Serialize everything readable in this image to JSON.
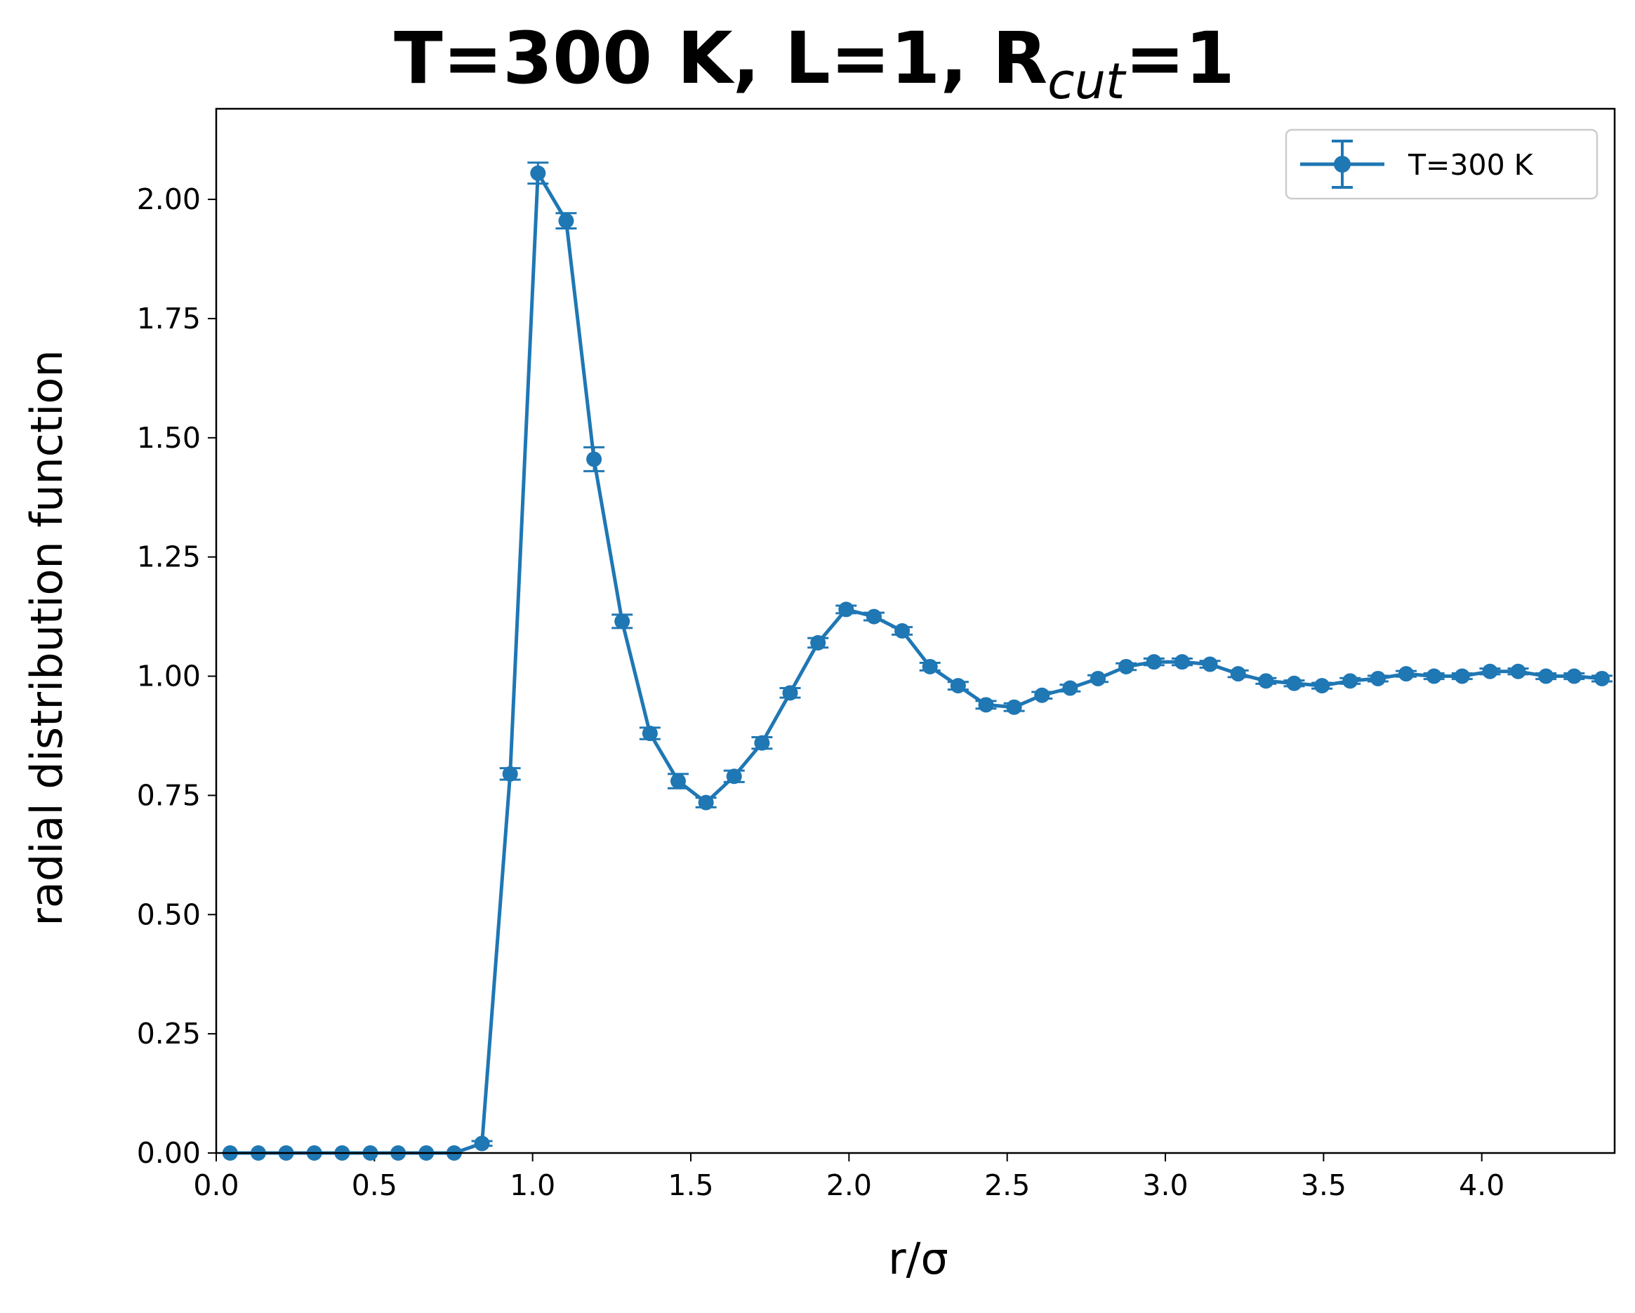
{
  "chart_data": {
    "type": "line",
    "title": {
      "prefix": "T=300 K, L=1, R",
      "subscript": "cut",
      "suffix": "=1"
    },
    "xlabel": "r/σ",
    "ylabel": "radial distribution function",
    "xlim": [
      0.0,
      4.42
    ],
    "ylim": [
      0.0,
      2.19
    ],
    "xticks": [
      0.0,
      0.5,
      1.0,
      1.5,
      2.0,
      2.5,
      3.0,
      3.5,
      4.0
    ],
    "xtick_labels": [
      "0.0",
      "0.5",
      "1.0",
      "1.5",
      "2.0",
      "2.5",
      "3.0",
      "3.5",
      "4.0"
    ],
    "yticks": [
      0.0,
      0.25,
      0.5,
      0.75,
      1.0,
      1.25,
      1.5,
      1.75,
      2.0
    ],
    "ytick_labels": [
      "0.00",
      "0.25",
      "0.50",
      "0.75",
      "1.00",
      "1.25",
      "1.50",
      "1.75",
      "2.00"
    ],
    "grid": false,
    "legend_position": "top-right",
    "series": [
      {
        "name": "T=300 K",
        "color": "#1f77b4",
        "marker": "circle",
        "error_bars": true,
        "x": [
          0.044,
          0.133,
          0.221,
          0.31,
          0.398,
          0.487,
          0.575,
          0.664,
          0.752,
          0.84,
          0.929,
          1.017,
          1.106,
          1.194,
          1.283,
          1.371,
          1.46,
          1.548,
          1.637,
          1.725,
          1.814,
          1.902,
          1.991,
          2.079,
          2.168,
          2.256,
          2.345,
          2.433,
          2.522,
          2.61,
          2.699,
          2.787,
          2.876,
          2.964,
          3.053,
          3.141,
          3.23,
          3.318,
          3.407,
          3.495,
          3.584,
          3.672,
          3.761,
          3.849,
          3.938,
          4.026,
          4.115,
          4.203,
          4.292,
          4.38
        ],
        "y": [
          0.0,
          0.0,
          0.0,
          0.0,
          0.0,
          0.0,
          0.0,
          0.0,
          0.0,
          0.02,
          0.795,
          2.055,
          1.955,
          1.455,
          1.115,
          0.88,
          0.78,
          0.735,
          0.79,
          0.86,
          0.965,
          1.07,
          1.14,
          1.125,
          1.095,
          1.02,
          0.98,
          0.94,
          0.935,
          0.96,
          0.975,
          0.995,
          1.02,
          1.03,
          1.03,
          1.025,
          1.005,
          0.99,
          0.985,
          0.98,
          0.99,
          0.995,
          1.005,
          1.0,
          1.0,
          1.01,
          1.01,
          1.0,
          1.0,
          0.995
        ],
        "yerr": [
          0.0,
          0.0,
          0.0,
          0.0,
          0.0,
          0.0,
          0.0,
          0.0,
          0.0,
          0.005,
          0.012,
          0.022,
          0.016,
          0.025,
          0.014,
          0.012,
          0.015,
          0.01,
          0.012,
          0.012,
          0.01,
          0.01,
          0.008,
          0.008,
          0.008,
          0.008,
          0.008,
          0.008,
          0.008,
          0.007,
          0.007,
          0.007,
          0.007,
          0.007,
          0.007,
          0.007,
          0.007,
          0.006,
          0.006,
          0.006,
          0.006,
          0.006,
          0.006,
          0.006,
          0.006,
          0.006,
          0.006,
          0.006,
          0.006,
          0.006
        ]
      }
    ]
  }
}
